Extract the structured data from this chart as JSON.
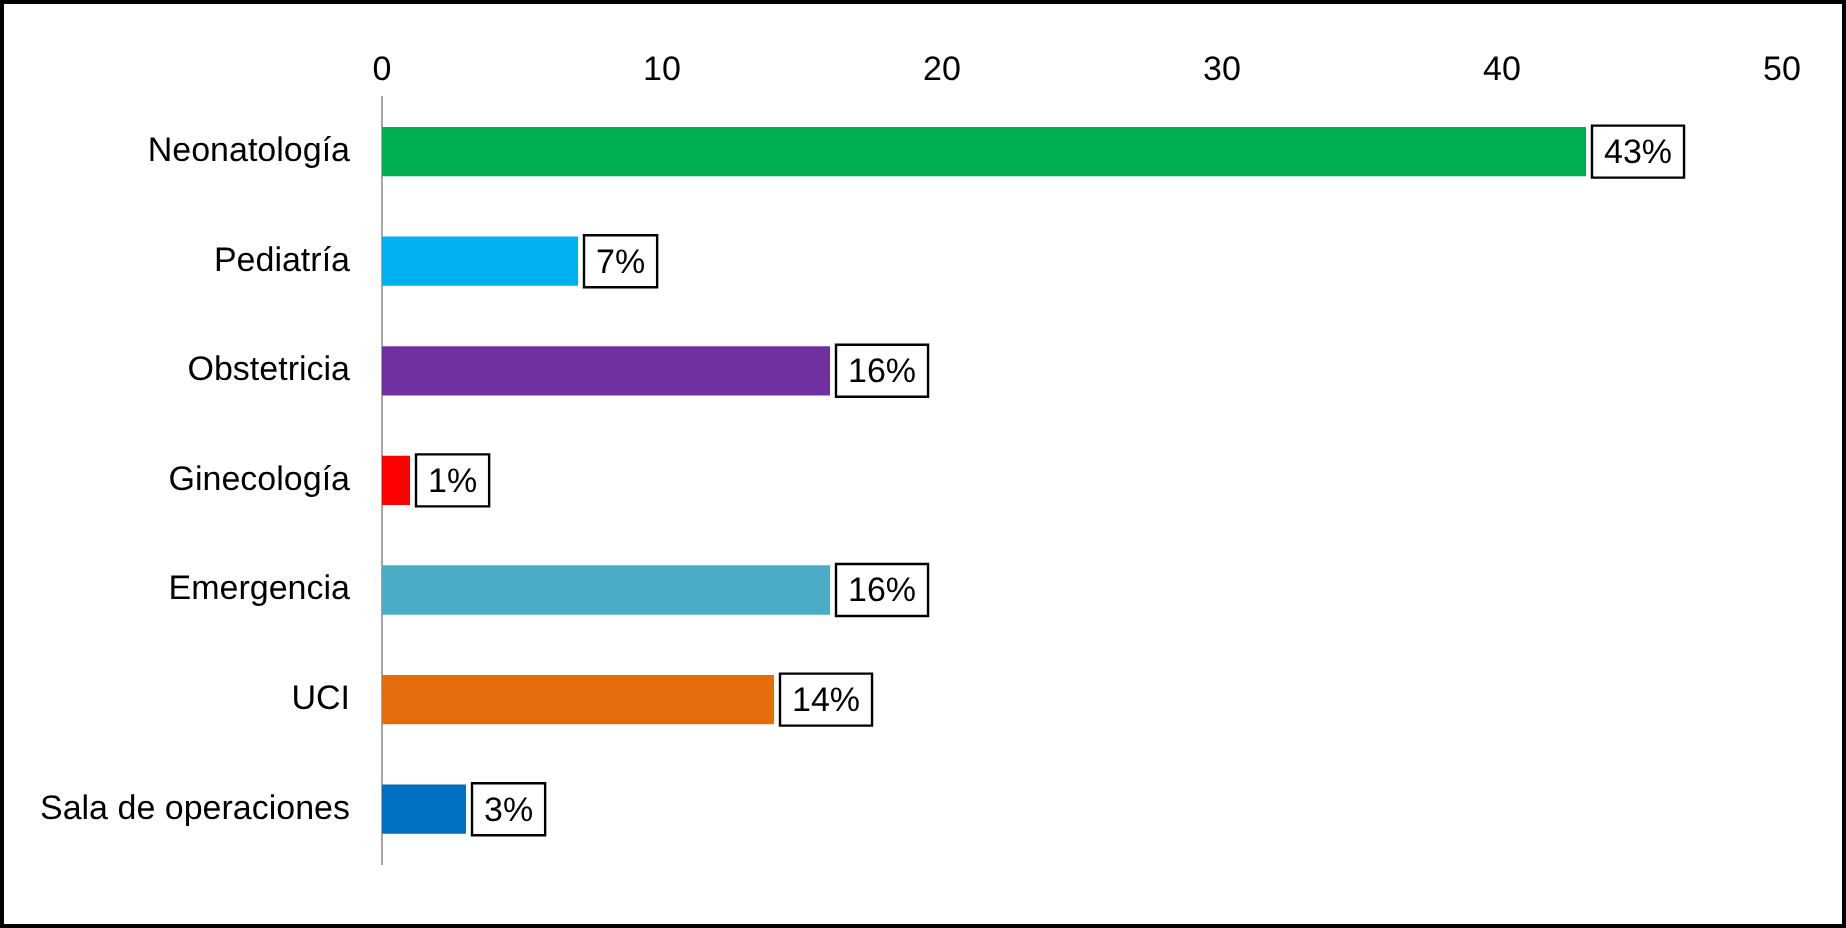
{
  "chart_data": {
    "type": "bar",
    "orientation": "horizontal",
    "categories": [
      "Neonatología",
      "Pediatría",
      "Obstetricia",
      "Ginecología",
      "Emergencia",
      "UCI",
      "Sala de operaciones"
    ],
    "values": [
      43,
      7,
      16,
      1,
      16,
      14,
      3
    ],
    "colors": [
      "#00b050",
      "#00b0f0",
      "#7030a0",
      "#ff0000",
      "#4bacc6",
      "#e46c0a",
      "#0070c0"
    ],
    "value_labels": [
      "43%",
      "7%",
      "16%",
      "1%",
      "16%",
      "14%",
      "3%"
    ],
    "xlim": [
      0,
      50
    ],
    "xticks": [
      0,
      10,
      20,
      30,
      40,
      50
    ],
    "grid": false,
    "legend": false
  }
}
